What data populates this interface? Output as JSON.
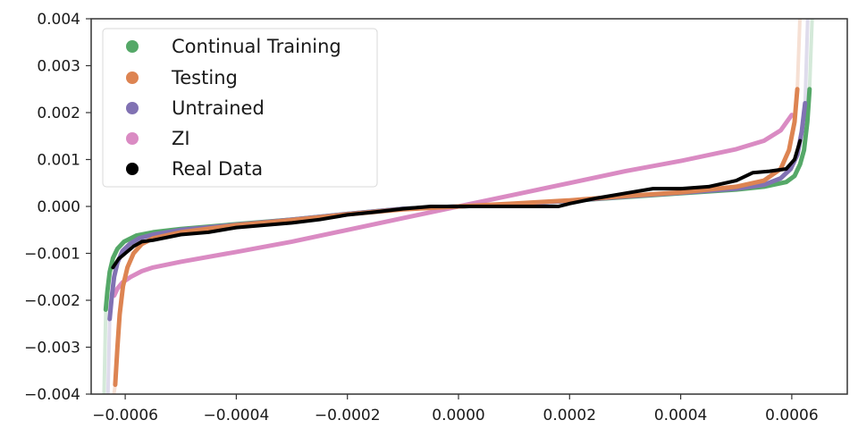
{
  "chart_data": {
    "type": "line",
    "title": "",
    "xlabel": "",
    "ylabel": "",
    "xlim": [
      -0.00069,
      0.0007
    ],
    "ylim": [
      -0.004,
      0.004
    ],
    "grid": false,
    "legend_position": "upper left",
    "x_ticks": [
      -0.0006,
      -0.0004,
      -0.0002,
      0.0,
      0.0002,
      0.0004,
      0.0006
    ],
    "x_tick_labels": [
      "−0.0006",
      "−0.0004",
      "−0.0002",
      "0.0000",
      "0.0002",
      "0.0004",
      "0.0006"
    ],
    "y_ticks": [
      0.004,
      0.003,
      0.002,
      0.001,
      0.0,
      -0.001,
      -0.002,
      -0.003,
      -0.004
    ],
    "y_tick_labels": [
      "0.004",
      "0.003",
      "0.002",
      "0.001",
      "0.000",
      "−0.001",
      "−0.002",
      "−0.003",
      "−0.004"
    ],
    "series": [
      {
        "name": "Continual Training",
        "color": "#55a868",
        "x": [
          -0.000635,
          -0.000632,
          -0.000628,
          -0.000622,
          -0.000614,
          -0.000602,
          -0.00058,
          -0.00055,
          -0.0005,
          -0.0004,
          -0.0003,
          -0.0002,
          -0.0001,
          0.0,
          0.0001,
          0.0002,
          0.0003,
          0.0004,
          0.0005,
          0.00055,
          0.00059,
          0.000605,
          0.000615,
          0.000622,
          0.000628,
          0.000632
        ],
        "y": [
          -0.0022,
          -0.0018,
          -0.0014,
          -0.0011,
          -0.0009,
          -0.00075,
          -0.00062,
          -0.00055,
          -0.00048,
          -0.00038,
          -0.00028,
          -0.00016,
          -5e-05,
          0.0,
          5e-05,
          0.00012,
          0.0002,
          0.00028,
          0.00036,
          0.00042,
          0.00052,
          0.00065,
          0.0009,
          0.0012,
          0.0018,
          0.0025
        ]
      },
      {
        "name": "Testing",
        "color": "#dd8452",
        "x": [
          -0.000618,
          -0.000614,
          -0.00061,
          -0.000604,
          -0.000596,
          -0.000585,
          -0.00057,
          -0.00055,
          -0.0005,
          -0.0004,
          -0.0003,
          -0.0002,
          -0.0001,
          0.0,
          0.0001,
          0.0002,
          0.0003,
          0.0004,
          0.0005,
          0.00055,
          0.00058,
          0.000595,
          0.000605,
          0.00061
        ],
        "y": [
          -0.0038,
          -0.003,
          -0.0023,
          -0.0017,
          -0.0013,
          -0.001,
          -0.0008,
          -0.00068,
          -0.00055,
          -0.0004,
          -0.00029,
          -0.00017,
          -6e-05,
          0.0,
          6e-05,
          0.00013,
          0.00022,
          0.0003,
          0.00042,
          0.00055,
          0.0008,
          0.0012,
          0.0018,
          0.0025
        ]
      },
      {
        "name": "Untrained",
        "color": "#8172b3",
        "x": [
          -0.000628,
          -0.000624,
          -0.00062,
          -0.000614,
          -0.000605,
          -0.000592,
          -0.000575,
          -0.00055,
          -0.0005,
          -0.0004,
          -0.0003,
          -0.0002,
          -0.0001,
          0.0,
          0.0001,
          0.0002,
          0.0003,
          0.0004,
          0.0005,
          0.00055,
          0.00058,
          0.000598,
          0.00061,
          0.000618,
          0.000624
        ],
        "y": [
          -0.0024,
          -0.0019,
          -0.0015,
          -0.0012,
          -0.00095,
          -0.0008,
          -0.00068,
          -0.0006,
          -0.0005,
          -0.00039,
          -0.00028,
          -0.00016,
          -5e-05,
          0.0,
          5e-05,
          0.00012,
          0.00021,
          0.00029,
          0.00038,
          0.00046,
          0.0006,
          0.0008,
          0.0011,
          0.0016,
          0.0022
        ]
      },
      {
        "name": "ZI",
        "color": "#da8bc3",
        "x": [
          -0.00062,
          -0.000614,
          -0.000605,
          -0.00059,
          -0.00057,
          -0.00055,
          -0.0005,
          -0.0004,
          -0.0003,
          -0.0002,
          -0.0001,
          0.0,
          0.0001,
          0.0002,
          0.0003,
          0.0004,
          0.0005,
          0.00055,
          0.00058,
          0.0006
        ],
        "y": [
          -0.0019,
          -0.00175,
          -0.00162,
          -0.0015,
          -0.00138,
          -0.0013,
          -0.00118,
          -0.00097,
          -0.00075,
          -0.0005,
          -0.00025,
          0.0,
          0.00025,
          0.0005,
          0.00075,
          0.00097,
          0.00122,
          0.0014,
          0.00162,
          0.00195
        ]
      },
      {
        "name": "Real Data",
        "color": "#000000",
        "x": [
          -0.000622,
          -0.000612,
          -0.0006,
          -0.000585,
          -0.00057,
          -0.00055,
          -0.0005,
          -0.00045,
          -0.0004,
          -0.0003,
          -0.00025,
          -0.0002,
          -0.00015,
          -0.0001,
          -5e-05,
          0.0,
          0.0001,
          0.00018,
          0.0002,
          0.00025,
          0.0003,
          0.00035,
          0.0004,
          0.00045,
          0.0005,
          0.00053,
          0.00056,
          0.00059,
          0.000605,
          0.000615
        ],
        "y": [
          -0.0013,
          -0.00112,
          -0.001,
          -0.00085,
          -0.00075,
          -0.00072,
          -0.0006,
          -0.00055,
          -0.00045,
          -0.00035,
          -0.00028,
          -0.00018,
          -0.00012,
          -5e-05,
          0.0,
          0.0,
          0.0,
          0.0,
          6e-05,
          0.00018,
          0.00028,
          0.00038,
          0.00038,
          0.00042,
          0.00055,
          0.00072,
          0.00075,
          0.0008,
          0.001,
          0.0014
        ]
      }
    ]
  },
  "legend": {
    "items": [
      {
        "label": "Continual Training",
        "color": "#55a868"
      },
      {
        "label": "Testing",
        "color": "#dd8452"
      },
      {
        "label": "Untrained",
        "color": "#8172b3"
      },
      {
        "label": "ZI",
        "color": "#da8bc3"
      },
      {
        "label": "Real Data",
        "color": "#000000"
      }
    ]
  }
}
